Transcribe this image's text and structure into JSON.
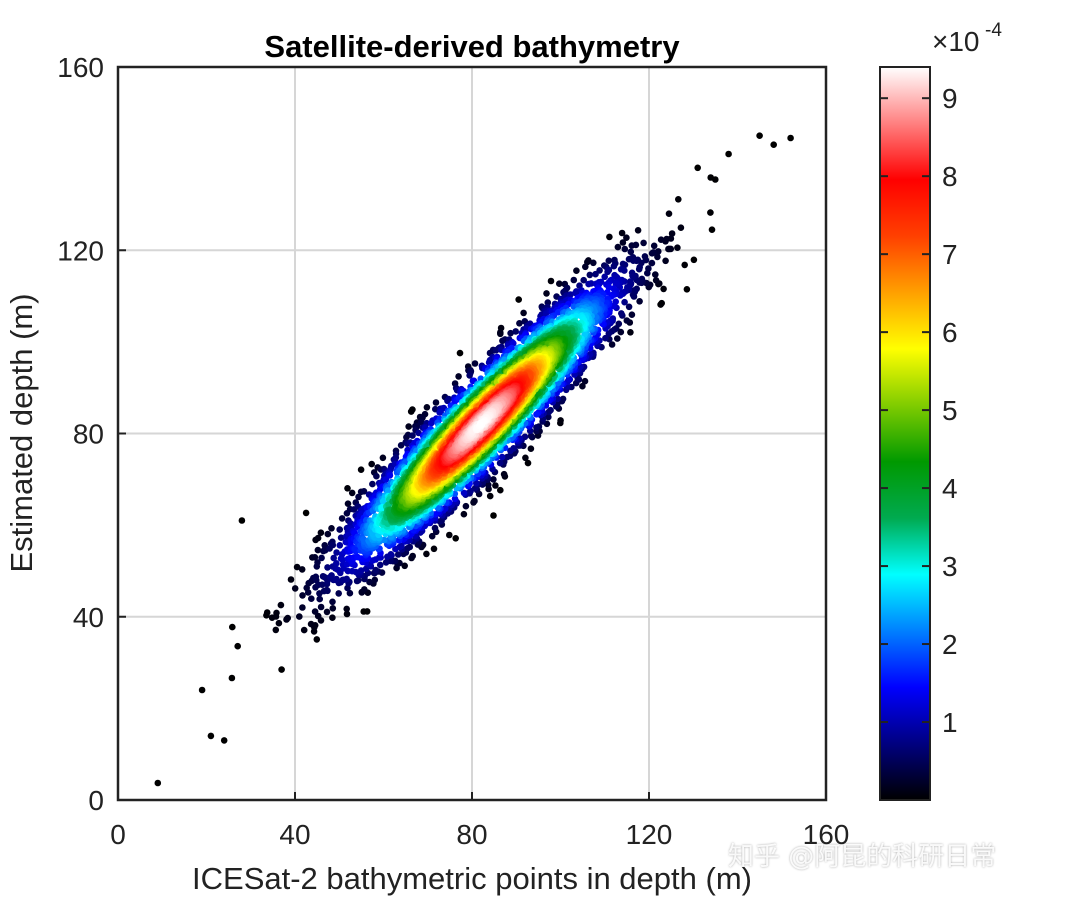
{
  "chart_data": {
    "type": "scatter",
    "title": "Satellite-derived bathymetry",
    "xlabel": "ICESat-2 bathymetric points in depth (m)",
    "ylabel": "Estimated depth (m)",
    "xlim": [
      0,
      160
    ],
    "ylim": [
      0,
      160
    ],
    "xticks": [
      0,
      40,
      80,
      120,
      160
    ],
    "yticks": [
      0,
      40,
      80,
      120,
      160
    ],
    "xtick_labels": [
      "0",
      "40",
      "80",
      "120",
      "160"
    ],
    "ytick_labels": [
      "0",
      "40",
      "80",
      "120",
      "160"
    ],
    "grid": true,
    "color_variable": "point density",
    "distribution": {
      "description": "dense elongated point cloud along the 1:1 line",
      "center": [
        82,
        82
      ],
      "x_range": [
        9,
        152
      ],
      "y_range": [
        3,
        146
      ],
      "core_density_peak": 0.00093
    },
    "outlier_points": [
      {
        "x": 9,
        "y": 3.7
      },
      {
        "x": 21,
        "y": 14
      },
      {
        "x": 24,
        "y": 13
      },
      {
        "x": 19,
        "y": 24
      },
      {
        "x": 145,
        "y": 145
      },
      {
        "x": 152,
        "y": 144.5
      },
      {
        "x": 138,
        "y": 141
      },
      {
        "x": 131,
        "y": 138
      },
      {
        "x": 28,
        "y": 61
      }
    ],
    "colorbar": {
      "label": "",
      "multiplier": "×10",
      "exponent": "-4",
      "range": [
        0,
        0.00094
      ],
      "ticks": [
        1,
        2,
        3,
        4,
        5,
        6,
        7,
        8,
        9
      ],
      "tick_labels": [
        "1",
        "2",
        "3",
        "4",
        "5",
        "6",
        "7",
        "8",
        "9"
      ],
      "colormap": [
        "#000000",
        "#000080",
        "#0000ff",
        "#0080ff",
        "#00ffff",
        "#00aa50",
        "#009900",
        "#80cc00",
        "#ffff00",
        "#ffa000",
        "#ff4000",
        "#ff0000",
        "#ff8080",
        "#ffffff"
      ]
    }
  },
  "watermark": "知乎 @阿昆的科研日常"
}
